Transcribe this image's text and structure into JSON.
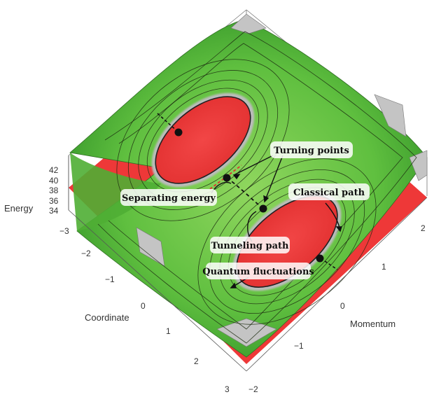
{
  "axes": {
    "energy": {
      "title": "Energy",
      "ticks": [
        "42",
        "40",
        "38",
        "36",
        "34"
      ]
    },
    "coordinate": {
      "title": "Coordinate",
      "ticks": [
        "−3",
        "−2",
        "−1",
        "0",
        "1",
        "2",
        "3"
      ]
    },
    "momentum": {
      "title": "Momentum",
      "ticks": [
        "2",
        "1",
        "0",
        "−1",
        "−2"
      ]
    }
  },
  "annotations": {
    "turning_points": "Turning points",
    "separating_energy": "Separating energy",
    "classical_path": "Classical path",
    "tunneling_path": "Tunneling path",
    "quantum_fluctuations": "Quantum fluctuations"
  },
  "colors": {
    "surface_green": "#3fa82f",
    "surface_light_green": "#8ed55f",
    "well_red": "#ee3c3c",
    "floor_red": "#ee3838",
    "cutout_gray": "#c4c4c4",
    "separatrix_dash": "#e03030"
  }
}
